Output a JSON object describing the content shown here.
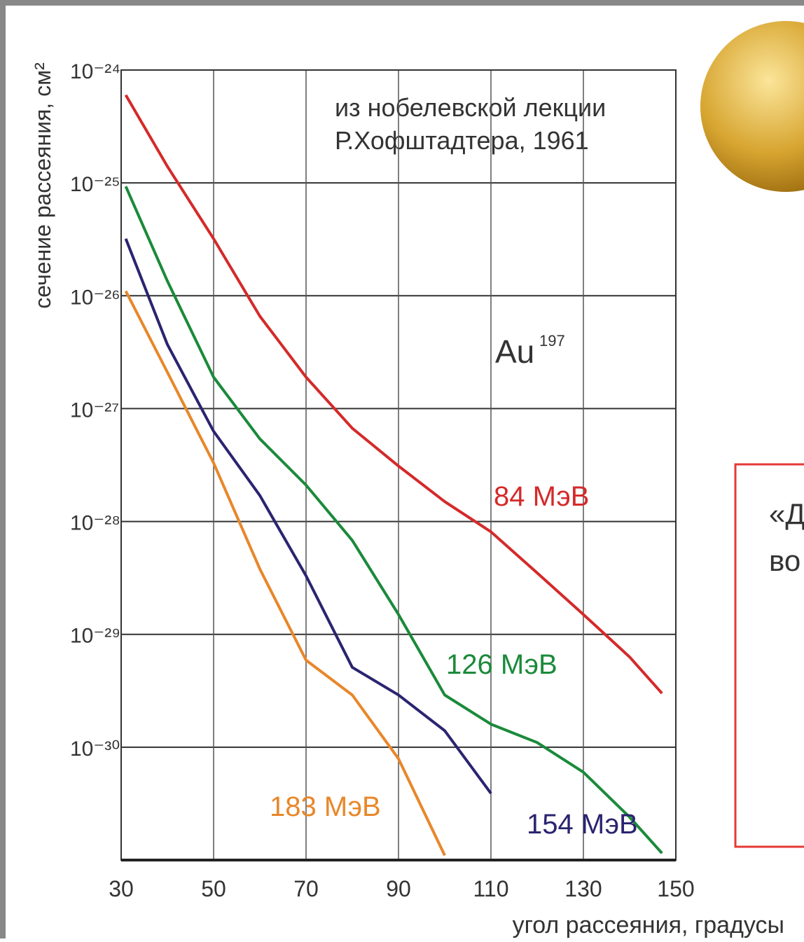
{
  "chart_data": {
    "type": "line",
    "annotation": [
      "из нобелевской лекции",
      "Р.Хофштадтера, 1961"
    ],
    "nucleus": "Au",
    "nucleus_mass": "197",
    "x_label": "угол рассеяния, градусы",
    "y_label": "сечение рассеяния, см²",
    "x": [
      31,
      40,
      50,
      60,
      70,
      80,
      90,
      100,
      110,
      120,
      130,
      140,
      147
    ],
    "series": [
      {
        "name": "84 МэВ",
        "color": "#d42a2a",
        "values": [
          6e-25,
          1.4e-25,
          3.2e-26,
          6.6e-27,
          1.9e-27,
          6.7e-28,
          3.1e-28,
          1.5e-28,
          8.1e-29,
          3.5e-29,
          1.5e-29,
          6.3e-30,
          3e-30
        ]
      },
      {
        "name": "126 МэВ",
        "color": "#1a8a3a",
        "values": [
          9.3e-26,
          1.35e-26,
          1.9e-27,
          5.4e-28,
          2.1e-28,
          6.8e-29,
          1.5e-29,
          2.9e-30,
          1.6e-30,
          1.1e-30,
          6e-31,
          2.4e-31,
          1.15e-31
        ]
      },
      {
        "name": "154 МэВ",
        "color": "#2a2470",
        "values": [
          3.2e-26,
          3.7e-27,
          6.3e-28,
          1.7e-28,
          3.3e-29,
          5.1e-30,
          2.9e-30,
          1.4e-30,
          3.9e-31,
          null,
          null,
          null,
          null
        ]
      },
      {
        "name": "183 МэВ",
        "color": "#e8872a",
        "values": [
          1.1e-26,
          2.1e-27,
          3.3e-28,
          3.8e-29,
          5.9e-30,
          2.9e-30,
          7.9e-31,
          1.1e-31,
          null,
          null,
          null,
          null,
          null
        ]
      }
    ],
    "xlim": [
      30,
      150
    ],
    "xticks": [
      30,
      50,
      70,
      90,
      110,
      130,
      150
    ],
    "ylim": [
      1e-31,
      1e-24
    ],
    "log_y": true,
    "grid": true,
    "yticks": [
      {
        "value": 1e-24,
        "label": "10⁻²⁴"
      },
      {
        "value": 1e-25,
        "label": "10⁻²⁵"
      },
      {
        "value": 1e-26,
        "label": "10⁻²⁶"
      },
      {
        "value": 1e-27,
        "label": "10⁻²⁷"
      },
      {
        "value": 1e-28,
        "label": "10⁻²⁸"
      },
      {
        "value": 1e-29,
        "label": "10⁻²⁹"
      },
      {
        "value": 1e-30,
        "label": "10⁻³⁰"
      }
    ],
    "side_text": [
      "«Д",
      "во"
    ]
  }
}
